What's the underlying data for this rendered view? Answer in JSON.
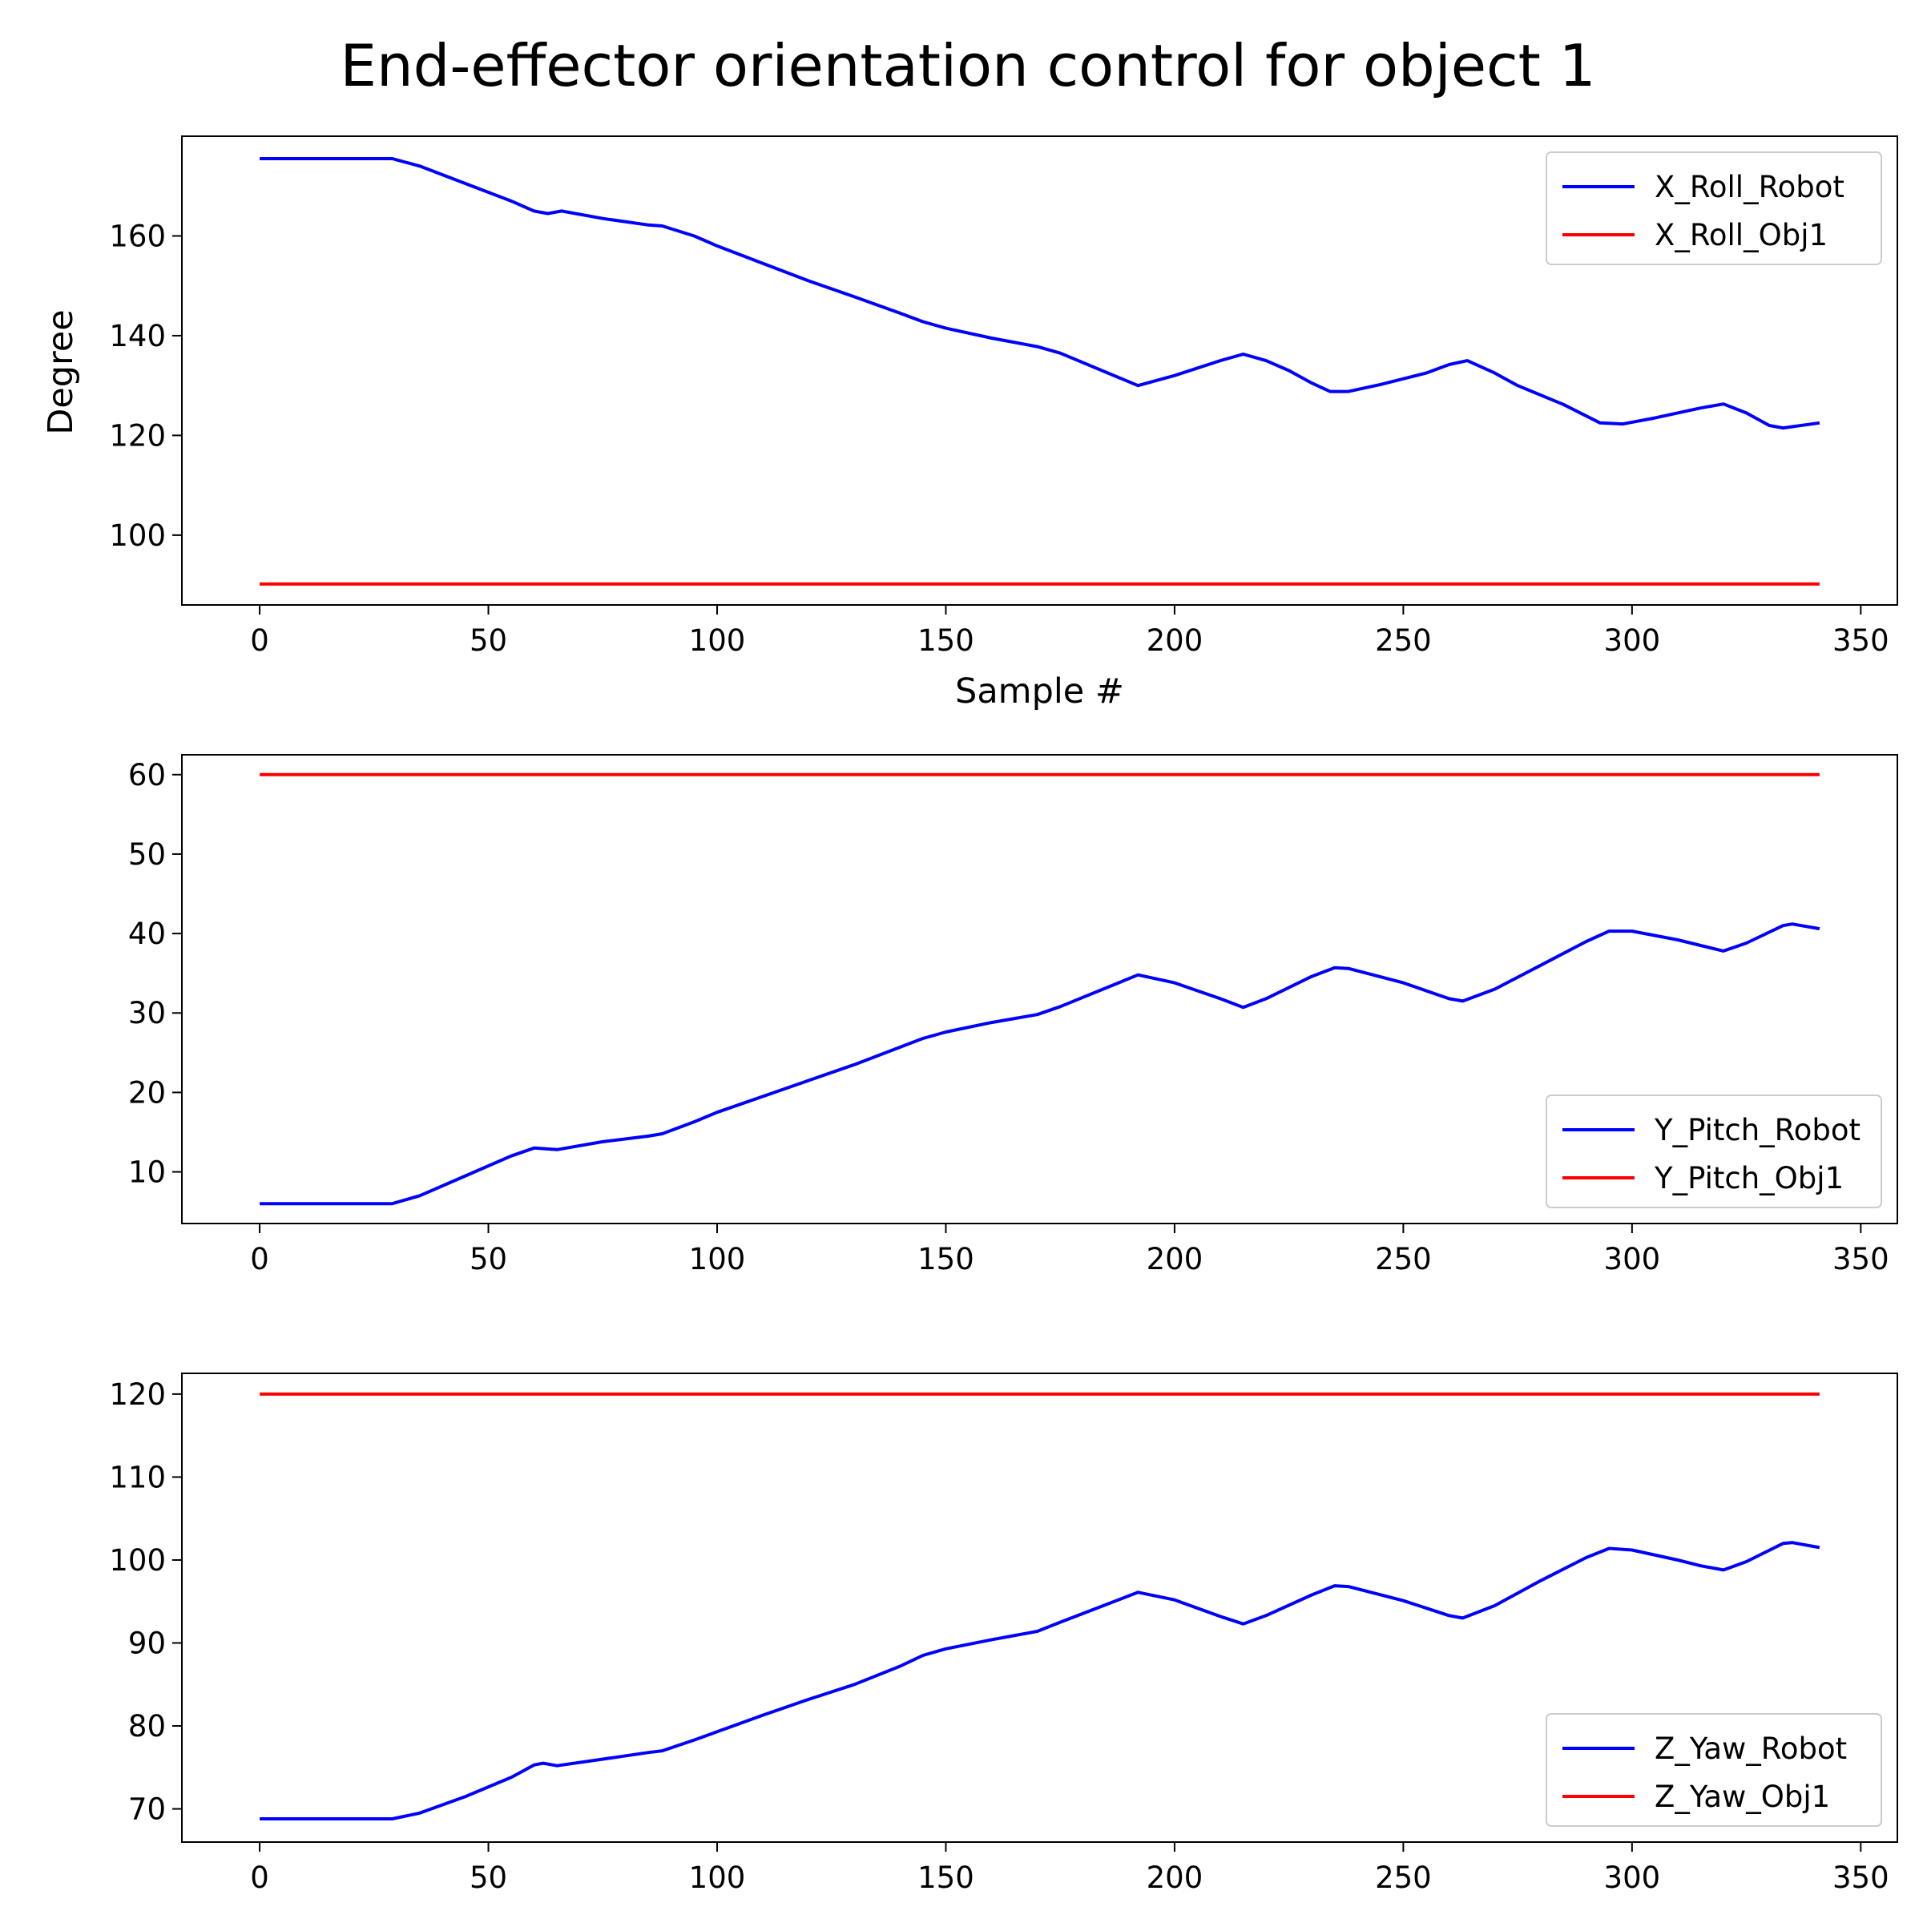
{
  "chart_data": [
    {
      "type": "line",
      "title": "End-effector orientation control for object 1",
      "xlabel": "Sample #",
      "ylabel": "Degree",
      "xlim": [
        -17,
        358
      ],
      "ylim": [
        86,
        180
      ],
      "x_ticks": [
        0,
        50,
        100,
        150,
        200,
        250,
        300,
        350
      ],
      "y_ticks": [
        100,
        120,
        140,
        160
      ],
      "legend_position": "upper right",
      "series": [
        {
          "name": "X_Roll_Robot",
          "color": "#0000ff",
          "points": [
            [
              0,
              175.5
            ],
            [
              29,
              175.5
            ],
            [
              35,
              174
            ],
            [
              45,
              170.5
            ],
            [
              55,
              167
            ],
            [
              60,
              165
            ],
            [
              63,
              164.5
            ],
            [
              66,
              165
            ],
            [
              75,
              163.5
            ],
            [
              85,
              162.2
            ],
            [
              88,
              162
            ],
            [
              95,
              160
            ],
            [
              100,
              158
            ],
            [
              110,
              154.5
            ],
            [
              120,
              151
            ],
            [
              130,
              147.8
            ],
            [
              140,
              144.5
            ],
            [
              145,
              142.8
            ],
            [
              150,
              141.5
            ],
            [
              160,
              139.5
            ],
            [
              170,
              137.8
            ],
            [
              175,
              136.5
            ],
            [
              192,
              130
            ],
            [
              200,
              132
            ],
            [
              210,
              135
            ],
            [
              215,
              136.3
            ],
            [
              220,
              135
            ],
            [
              225,
              133
            ],
            [
              230,
              130.5
            ],
            [
              234,
              128.8
            ],
            [
              238,
              128.8
            ],
            [
              245,
              130.2
            ],
            [
              255,
              132.5
            ],
            [
              260,
              134.2
            ],
            [
              264,
              135
            ],
            [
              270,
              132.5
            ],
            [
              275,
              130
            ],
            [
              285,
              126.2
            ],
            [
              293,
              122.5
            ],
            [
              298,
              122.3
            ],
            [
              305,
              123.5
            ],
            [
              315,
              125.5
            ],
            [
              320,
              126.3
            ],
            [
              325,
              124.5
            ],
            [
              330,
              122
            ],
            [
              333,
              121.5
            ],
            [
              341,
              122.5
            ]
          ]
        },
        {
          "name": "X_Roll_Obj1",
          "color": "#ff0000",
          "points": [
            [
              0,
              90.2
            ],
            [
              341,
              90.2
            ]
          ]
        }
      ]
    },
    {
      "type": "line",
      "title": "",
      "xlabel": "",
      "ylabel": "",
      "xlim": [
        -17,
        358
      ],
      "ylim": [
        3.5,
        62.5
      ],
      "x_ticks": [
        0,
        50,
        100,
        150,
        200,
        250,
        300,
        350
      ],
      "y_ticks": [
        10,
        20,
        30,
        40,
        50,
        60
      ],
      "legend_position": "lower right",
      "series": [
        {
          "name": "Y_Pitch_Robot",
          "color": "#0000ff",
          "points": [
            [
              0,
              6
            ],
            [
              29,
              6
            ],
            [
              35,
              7
            ],
            [
              45,
              9.5
            ],
            [
              55,
              12
            ],
            [
              60,
              13
            ],
            [
              65,
              12.8
            ],
            [
              75,
              13.8
            ],
            [
              85,
              14.5
            ],
            [
              88,
              14.8
            ],
            [
              95,
              16.3
            ],
            [
              100,
              17.5
            ],
            [
              110,
              19.5
            ],
            [
              120,
              21.5
            ],
            [
              130,
              23.5
            ],
            [
              140,
              25.7
            ],
            [
              145,
              26.8
            ],
            [
              150,
              27.6
            ],
            [
              160,
              28.8
            ],
            [
              170,
              29.8
            ],
            [
              175,
              30.8
            ],
            [
              192,
              34.8
            ],
            [
              200,
              33.8
            ],
            [
              210,
              31.8
            ],
            [
              215,
              30.7
            ],
            [
              220,
              31.8
            ],
            [
              230,
              34.6
            ],
            [
              235,
              35.7
            ],
            [
              238,
              35.6
            ],
            [
              250,
              33.8
            ],
            [
              260,
              31.8
            ],
            [
              263,
              31.5
            ],
            [
              270,
              33
            ],
            [
              280,
              36
            ],
            [
              290,
              39
            ],
            [
              295,
              40.3
            ],
            [
              300,
              40.3
            ],
            [
              310,
              39.2
            ],
            [
              315,
              38.5
            ],
            [
              320,
              37.8
            ],
            [
              325,
              38.8
            ],
            [
              333,
              41
            ],
            [
              335,
              41.2
            ],
            [
              341,
              40.6
            ]
          ]
        },
        {
          "name": "Y_Pitch_Obj1",
          "color": "#ff0000",
          "points": [
            [
              0,
              60
            ],
            [
              341,
              60
            ]
          ]
        }
      ]
    },
    {
      "type": "line",
      "title": "",
      "xlabel": "",
      "ylabel": "",
      "xlim": [
        -17,
        358
      ],
      "ylim": [
        66,
        122.5
      ],
      "x_ticks": [
        0,
        50,
        100,
        150,
        200,
        250,
        300,
        350
      ],
      "y_ticks": [
        70,
        80,
        90,
        100,
        110,
        120
      ],
      "legend_position": "lower right",
      "series": [
        {
          "name": "Z_Yaw_Robot",
          "color": "#0000ff",
          "points": [
            [
              0,
              68.8
            ],
            [
              29,
              68.8
            ],
            [
              35,
              69.5
            ],
            [
              45,
              71.5
            ],
            [
              55,
              73.8
            ],
            [
              60,
              75.3
            ],
            [
              62,
              75.5
            ],
            [
              65,
              75.2
            ],
            [
              75,
              76
            ],
            [
              85,
              76.8
            ],
            [
              88,
              77
            ],
            [
              95,
              78.3
            ],
            [
              100,
              79.3
            ],
            [
              110,
              81.3
            ],
            [
              120,
              83.2
            ],
            [
              130,
              85
            ],
            [
              140,
              87.2
            ],
            [
              145,
              88.5
            ],
            [
              150,
              89.3
            ],
            [
              160,
              90.4
            ],
            [
              170,
              91.4
            ],
            [
              175,
              92.5
            ],
            [
              192,
              96.1
            ],
            [
              200,
              95.2
            ],
            [
              210,
              93.2
            ],
            [
              215,
              92.3
            ],
            [
              220,
              93.3
            ],
            [
              230,
              95.8
            ],
            [
              235,
              96.9
            ],
            [
              238,
              96.8
            ],
            [
              250,
              95.1
            ],
            [
              260,
              93.3
            ],
            [
              263,
              93
            ],
            [
              270,
              94.5
            ],
            [
              280,
              97.5
            ],
            [
              290,
              100.3
            ],
            [
              295,
              101.4
            ],
            [
              300,
              101.2
            ],
            [
              310,
              100
            ],
            [
              315,
              99.3
            ],
            [
              320,
              98.8
            ],
            [
              325,
              99.8
            ],
            [
              333,
              102
            ],
            [
              335,
              102.1
            ],
            [
              341,
              101.5
            ]
          ]
        },
        {
          "name": "Z_Yaw_Obj1",
          "color": "#ff0000",
          "points": [
            [
              0,
              120
            ],
            [
              341,
              120
            ]
          ]
        }
      ]
    }
  ]
}
